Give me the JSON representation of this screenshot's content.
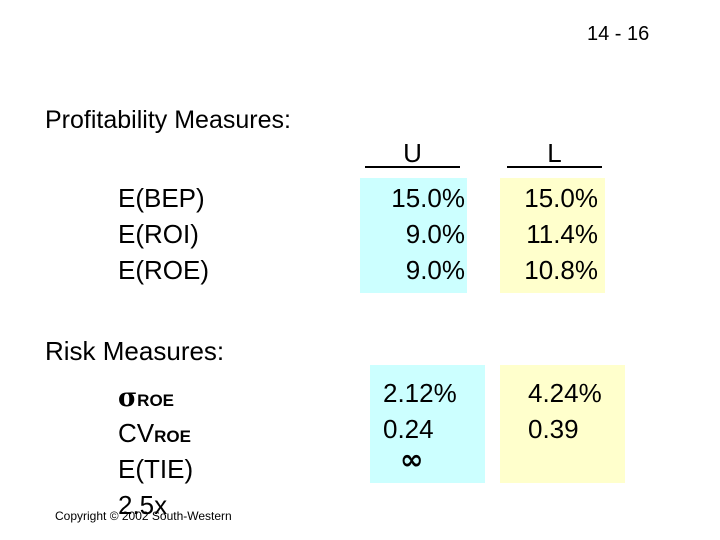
{
  "page_number": "14 - 16",
  "profitability": {
    "title": "Profitability Measures:",
    "columns": [
      "U",
      "L"
    ],
    "rows": [
      {
        "label": "E(BEP)",
        "u": "15.0%",
        "l": "15.0%"
      },
      {
        "label": "E(ROI)",
        "u": "9.0%",
        "l": "11.4%"
      },
      {
        "label": "E(ROE)",
        "u": "9.0%",
        "l": "10.8%"
      }
    ]
  },
  "risk": {
    "title": "Risk Measures:",
    "rows": [
      {
        "symbol": "σ",
        "subscript": "ROE",
        "u": "2.12%",
        "l": "4.24%"
      },
      {
        "symbol": "CV",
        "subscript": "ROE",
        "u": "0.24",
        "l": "0.39"
      },
      {
        "symbol": "E(TIE)",
        "u": "∞"
      },
      {
        "symbol": "2.5x"
      }
    ]
  },
  "footer": {
    "copyright": "Copyright © 2002 South-Western"
  }
}
